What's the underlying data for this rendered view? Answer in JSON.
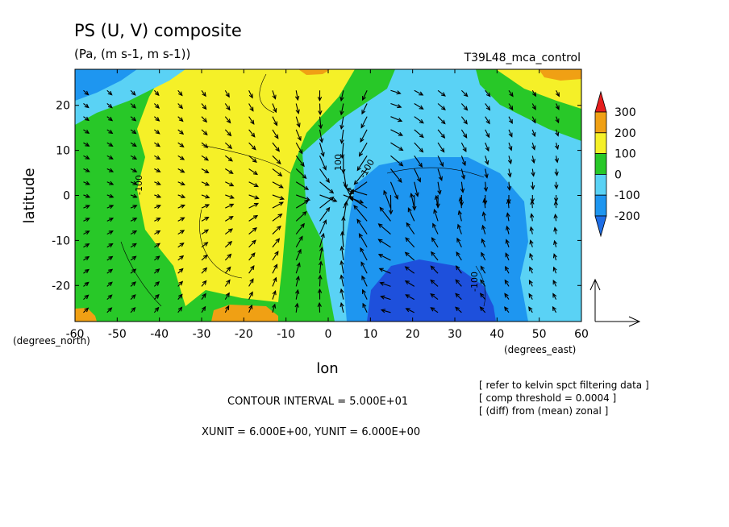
{
  "chart_data": {
    "type": "heatmap",
    "title": "PS (U, V) composite",
    "subtitle": "(Pa, (m s-1, m s-1))",
    "run_label": "T39L48_mca_control",
    "xlabel": "lon",
    "ylabel": "latitude",
    "x_unit_note": "(degrees_east)",
    "y_unit_note": "(degrees_north)",
    "xlim": [
      -60,
      60
    ],
    "ylim": [
      -28,
      28
    ],
    "x_ticks": [
      -60,
      -50,
      -40,
      -30,
      -20,
      -10,
      0,
      10,
      20,
      30,
      40,
      50,
      60
    ],
    "x_tick_labels": [
      "-60",
      "-50",
      "-40",
      "-30",
      "-20",
      "-10",
      "0",
      "10",
      "20",
      "30",
      "40",
      "50",
      "60"
    ],
    "y_ticks": [
      -20,
      -10,
      0,
      10,
      20
    ],
    "y_tick_labels": [
      "-20",
      "-10",
      "0",
      "10",
      "20"
    ],
    "colorbar": {
      "levels": [
        -200,
        -100,
        0,
        100,
        200,
        300
      ],
      "labels": [
        "-200",
        "-100",
        "0",
        "100",
        "200",
        "300"
      ],
      "colors": [
        "#1e6ee6",
        "#1e96f0",
        "#5ad2f5",
        "#28c828",
        "#f5f028",
        "#f0a014",
        "#e61e1e"
      ]
    },
    "field_colors": {
      "deep_blue": "#1e50dc",
      "blue": "#1e96f0",
      "cyan": "#5ad2f5",
      "green": "#28c828",
      "yellow": "#f5f028",
      "orange": "#f0a014"
    },
    "contour_labels": [
      "-100",
      "100",
      "-100",
      "-100"
    ],
    "contour_interval": "CONTOUR INTERVAL = 5.000E+01",
    "vector_units": "XUNIT = 6.000E+00, YUNIT = 6.000E+00",
    "notes": [
      "[ refer to kelvin spct filtering data ]",
      "[ comp threshold = 0.0004 ]",
      "[ (diff) from (mean) zonal ]"
    ]
  }
}
